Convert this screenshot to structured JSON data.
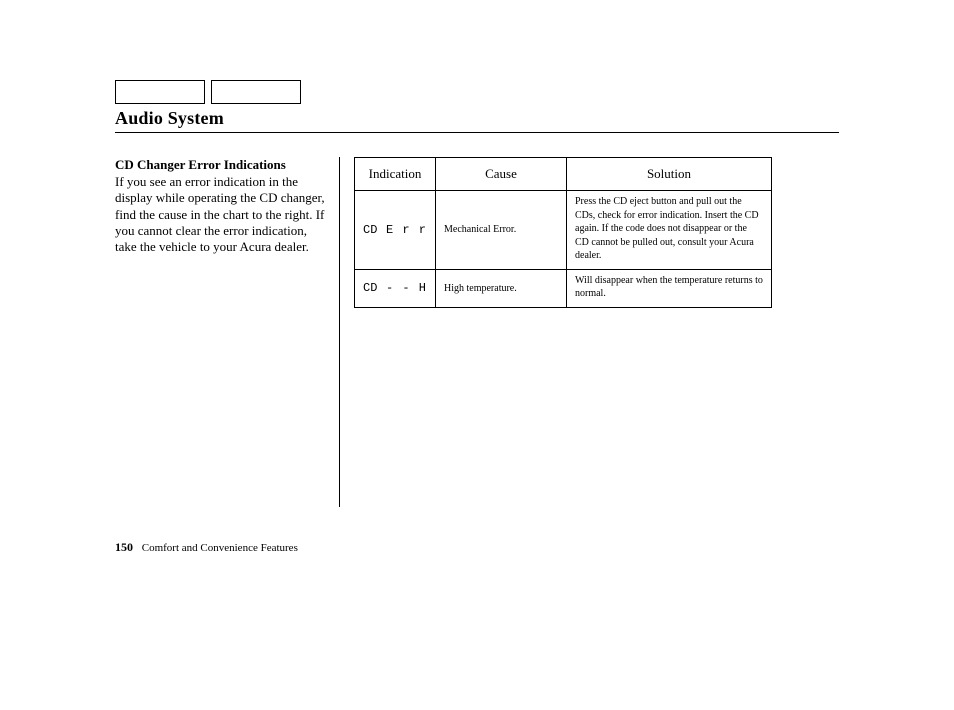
{
  "page": {
    "title": "Audio System",
    "number": "150",
    "section": "Comfort and Convenience Features"
  },
  "left": {
    "subhead": "CD Changer Error Indications",
    "body": "If you see an error indication in the display while operating the CD changer, find the cause in the chart to the right. If you cannot clear the error indication, take the vehicle to your Acura dealer."
  },
  "table": {
    "headers": {
      "indication": "Indication",
      "cause": "Cause",
      "solution": "Solution"
    },
    "rows": [
      {
        "ind_left": "CD",
        "ind_right": "E r r",
        "cause": "Mechanical Error.",
        "solution": "Press the CD eject button and pull out the CDs, check for error indication. Insert the CD again. If the code does not disappear or the CD cannot be pulled out, consult your Acura dealer."
      },
      {
        "ind_left": "CD",
        "ind_right": "- - H",
        "cause": "High temperature.",
        "solution": "Will disappear when the temperature returns to normal."
      }
    ]
  }
}
